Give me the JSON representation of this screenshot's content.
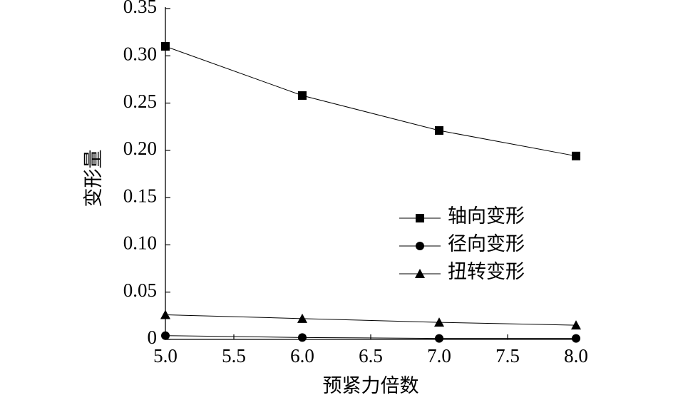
{
  "chart_data": {
    "type": "line",
    "xlabel": "预紧力倍数",
    "ylabel": "变形量",
    "x": [
      5.0,
      6.0,
      7.0,
      8.0
    ],
    "series": [
      {
        "name": "轴向变形",
        "color": "#000000",
        "marker": "square",
        "values": [
          0.31,
          0.258,
          0.221,
          0.194
        ]
      },
      {
        "name": "径向变形",
        "color": "#000000",
        "marker": "circle",
        "values": [
          0.004,
          0.002,
          0.001,
          0.001
        ]
      },
      {
        "name": "扭转变形",
        "color": "#000000",
        "marker": "triangle",
        "values": [
          0.026,
          0.022,
          0.018,
          0.015
        ]
      }
    ],
    "xlim": [
      5.0,
      8.0
    ],
    "xticks": [
      {
        "value": 5.0,
        "label": "5.0"
      },
      {
        "value": 5.5,
        "label": "5.5"
      },
      {
        "value": 6.0,
        "label": "6.0"
      },
      {
        "value": 6.5,
        "label": "6.5"
      },
      {
        "value": 7.0,
        "label": "7.0"
      },
      {
        "value": 7.5,
        "label": "7.5"
      },
      {
        "value": 8.0,
        "label": "8.0"
      }
    ],
    "ylim": [
      0,
      0.35
    ],
    "yticks": [
      0,
      0.05,
      {
        "value": 0.1,
        "label": "0.10"
      },
      0.15,
      {
        "value": 0.2,
        "label": "0.20"
      },
      0.25,
      {
        "value": 0.3,
        "label": "0.30"
      },
      0.35
    ],
    "grid": false,
    "legend": "center-right"
  }
}
